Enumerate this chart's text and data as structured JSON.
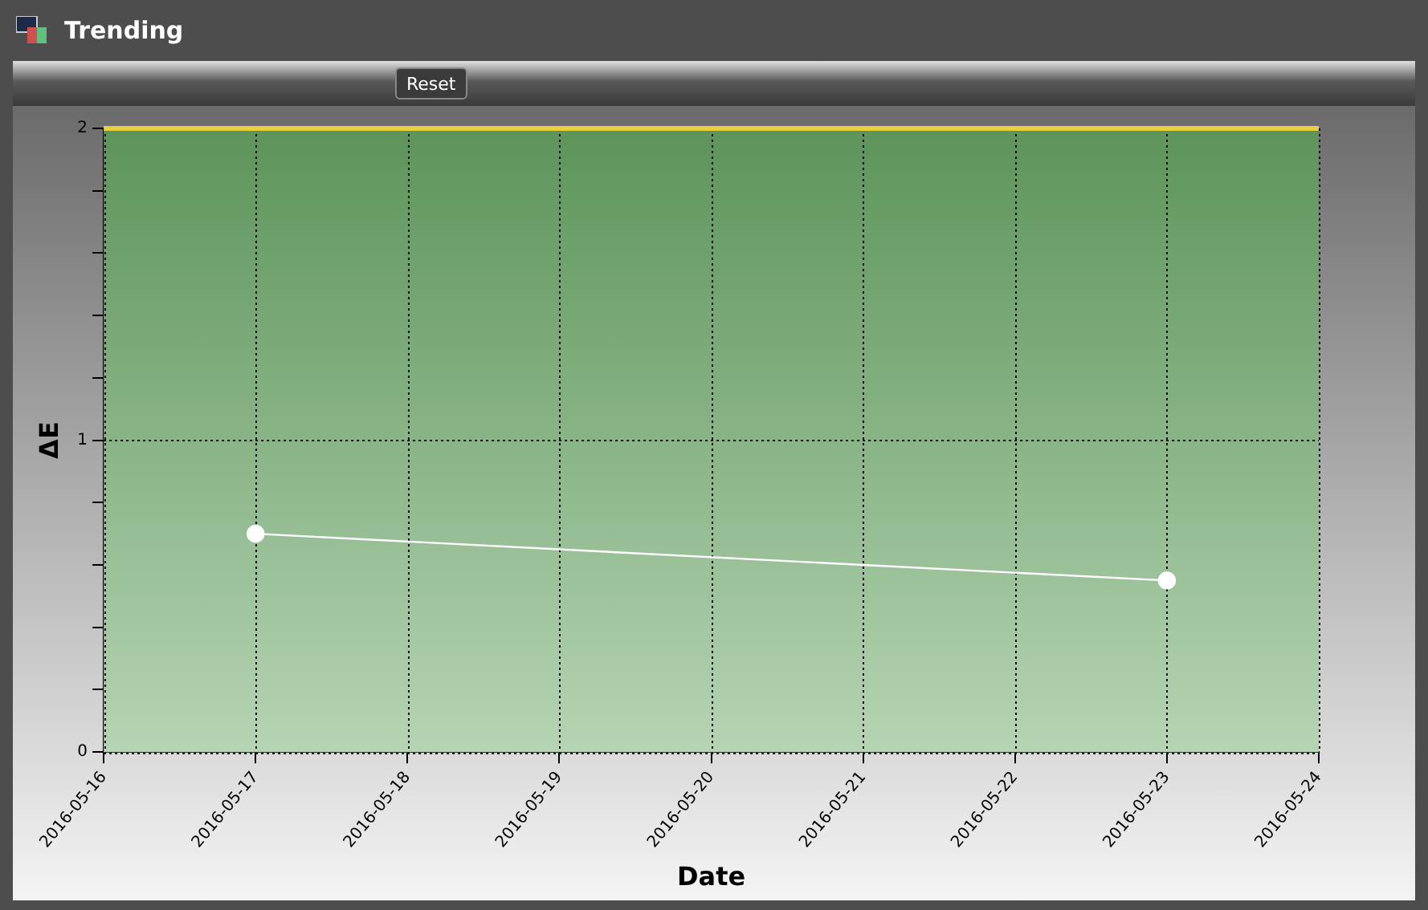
{
  "chart_data": {
    "type": "line",
    "title": "Trending",
    "annotations": [
      "Reset"
    ],
    "xlabel": "Date",
    "ylabel": "ΔE",
    "x": [
      "2016-05-17",
      "2016-05-23"
    ],
    "series": [
      {
        "color": "#ffffff",
        "values": [
          0.7,
          0.55
        ]
      }
    ],
    "xlim": [
      "2016-05-16",
      "2016-05-24"
    ],
    "xticks": [
      "2016-05-16",
      "2016-05-17",
      "2016-05-18",
      "2016-05-19",
      "2016-05-20",
      "2016-05-21",
      "2016-05-22",
      "2016-05-23",
      "2016-05-24"
    ],
    "ylim": [
      0,
      2
    ],
    "yticks": [
      0,
      {
        "value": 0.2,
        "label": null
      },
      {
        "value": 0.4,
        "label": null
      },
      {
        "value": 0.6,
        "label": null
      },
      {
        "value": 0.8,
        "label": null
      },
      1,
      {
        "value": 1.2,
        "label": null
      },
      {
        "value": 1.4,
        "label": null
      },
      {
        "value": 1.6,
        "label": null
      },
      {
        "value": 1.8,
        "label": null
      },
      2
    ],
    "bands": [
      {
        "axis": "y",
        "from": 0,
        "to": 2,
        "color": "#6aa866"
      }
    ],
    "ref_lines": [
      {
        "axis": "y",
        "value": 2,
        "color": "#e8d040"
      }
    ],
    "grid": true,
    "marker": "circle",
    "line_style": "solid",
    "legend": false
  }
}
